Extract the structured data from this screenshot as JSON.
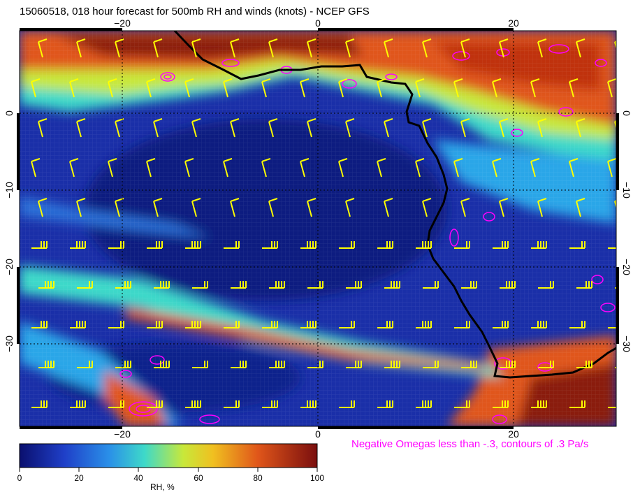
{
  "title": "15060518, 018 hour forecast for 500mb RH and winds (knots) - NCEP GFS",
  "omega_note": "Negative Omegas less than -.3, contours of .3 Pa/s",
  "colorbar": {
    "label": "RH, %",
    "ticks": [
      "0",
      "20",
      "40",
      "60",
      "80",
      "100"
    ],
    "colors": [
      "#0a0f6e",
      "#1f4fd6",
      "#2aa6e8",
      "#3ed9c9",
      "#c8e83a",
      "#f0c020",
      "#e0561a",
      "#8a1010"
    ]
  },
  "axes": {
    "lon_top": [
      "−20",
      "0",
      "20"
    ],
    "lon_bottom": [
      "−20",
      "0",
      "20"
    ],
    "lat_left": [
      "0",
      "−10",
      "−20",
      "−30"
    ],
    "lat_right": [
      "0",
      "−10",
      "−20",
      "−30"
    ]
  },
  "map": {
    "extent": {
      "lon": [
        -30,
        30
      ],
      "lat": [
        -40,
        10
      ]
    },
    "colors": {
      "coast": "#000000",
      "wind": "#ffff00",
      "omega": "#ff00ff",
      "grid": "#000000"
    }
  }
}
